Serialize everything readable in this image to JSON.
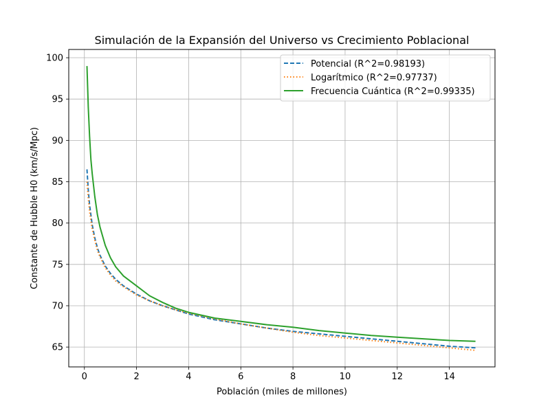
{
  "chart_data": {
    "type": "line",
    "title": "Simulación de la Expansión del Universo vs Crecimiento Poblacional",
    "xlabel": "Población (miles de millones)",
    "ylabel": "Constante de Hubble H0 (km/s/Mpc)",
    "xlim": [
      -0.6,
      15.75
    ],
    "ylim": [
      62.6,
      101.0
    ],
    "xticks": [
      0,
      2,
      4,
      6,
      8,
      10,
      12,
      14
    ],
    "yticks": [
      65,
      70,
      75,
      80,
      85,
      90,
      95,
      100
    ],
    "xtick_labels": [
      "0",
      "2",
      "4",
      "6",
      "8",
      "10",
      "12",
      "14"
    ],
    "ytick_labels": [
      "65",
      "70",
      "75",
      "80",
      "85",
      "90",
      "95",
      "100"
    ],
    "grid": true,
    "legend_position": "top-right",
    "series": [
      {
        "name": "Potencial (R^2=0.98193)",
        "color": "#1f77b4",
        "style": "dashed",
        "x": [
          0.1,
          0.15,
          0.2,
          0.3,
          0.4,
          0.5,
          0.6,
          0.8,
          1.0,
          1.2,
          1.5,
          2.0,
          2.5,
          3.0,
          3.5,
          4.0,
          5.0,
          6.0,
          7.0,
          8.0,
          9.0,
          10.0,
          11.0,
          12.0,
          13.0,
          14.0,
          15.0
        ],
        "y": [
          86.5,
          84.0,
          82.2,
          79.8,
          78.2,
          77.0,
          76.1,
          74.8,
          73.9,
          73.2,
          72.4,
          71.4,
          70.6,
          70.0,
          69.5,
          69.0,
          68.3,
          67.8,
          67.3,
          66.9,
          66.6,
          66.3,
          66.0,
          65.7,
          65.4,
          65.1,
          64.9
        ]
      },
      {
        "name": "Logarítmico (R^2=0.97737)",
        "color": "#ff7f0e",
        "style": "dotted",
        "x": [
          0.1,
          0.15,
          0.2,
          0.3,
          0.4,
          0.5,
          0.6,
          0.8,
          1.0,
          1.2,
          1.5,
          2.0,
          2.5,
          3.0,
          3.5,
          4.0,
          5.0,
          6.0,
          7.0,
          8.0,
          9.0,
          10.0,
          11.0,
          12.0,
          13.0,
          14.0,
          15.0
        ],
        "y": [
          85.0,
          83.0,
          81.4,
          79.3,
          77.9,
          76.7,
          75.9,
          74.6,
          73.7,
          73.0,
          72.3,
          71.3,
          70.6,
          70.0,
          69.5,
          69.1,
          68.4,
          67.8,
          67.3,
          66.8,
          66.4,
          66.1,
          65.8,
          65.5,
          65.2,
          64.9,
          64.6
        ]
      },
      {
        "name": "Frecuencia Cuántica (R^2=0.99335)",
        "color": "#2ca02c",
        "style": "solid",
        "x": [
          0.1,
          0.15,
          0.2,
          0.25,
          0.3,
          0.4,
          0.5,
          0.6,
          0.8,
          1.0,
          1.2,
          1.5,
          2.0,
          2.5,
          3.0,
          3.5,
          4.0,
          5.0,
          6.0,
          7.0,
          8.0,
          9.0,
          10.0,
          11.0,
          12.0,
          13.0,
          14.0,
          15.0
        ],
        "y": [
          99.0,
          94.0,
          90.5,
          87.7,
          86.0,
          83.2,
          81.0,
          79.5,
          77.3,
          75.8,
          74.7,
          73.6,
          72.4,
          71.2,
          70.4,
          69.7,
          69.2,
          68.5,
          68.1,
          67.7,
          67.4,
          67.0,
          66.7,
          66.4,
          66.2,
          66.0,
          65.8,
          65.7
        ]
      }
    ]
  }
}
